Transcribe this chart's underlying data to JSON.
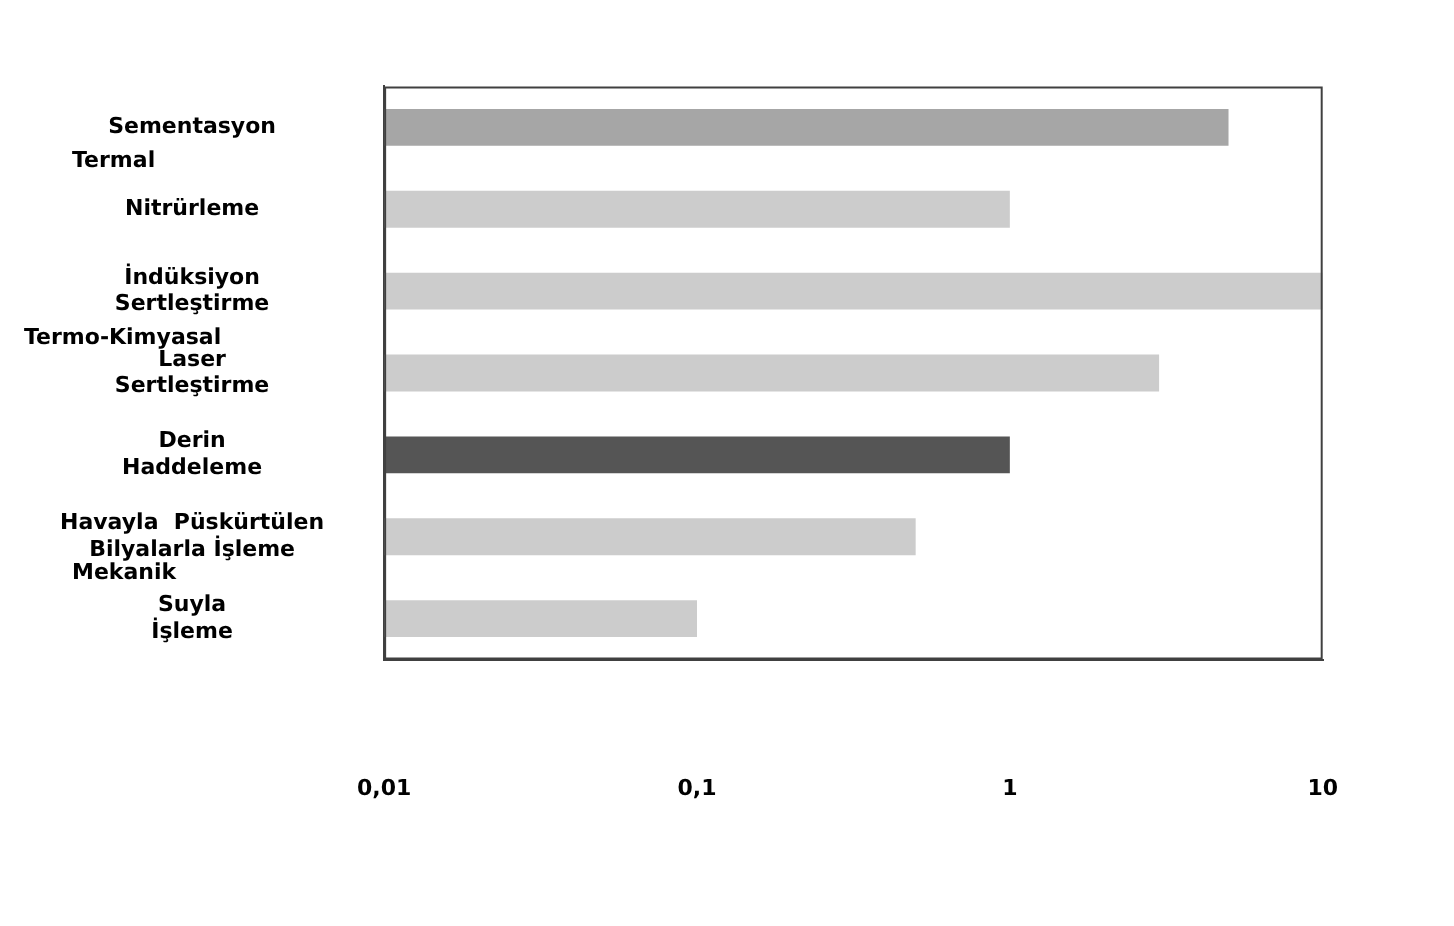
{
  "chart_data": {
    "type": "bar",
    "orientation": "horizontal",
    "log": "x",
    "categories": [
      "Sementasyon",
      "Nitrürleme",
      "İndüksiyon\nSertleştirme",
      "Laser\nSertleştirme",
      "Derin\nHaddeleme",
      "Havayla  Püskürtülen\nBilyalarla İşleme",
      "Suyla\nİşleme"
    ],
    "values": [
      5,
      1,
      10,
      3,
      1,
      0.5,
      0.1
    ],
    "colors": [
      "#a6a6a6",
      "#cccccc",
      "#cccccc",
      "#cccccc",
      "#555555",
      "#cccccc",
      "#cccccc"
    ],
    "xlim": [
      0.01,
      10
    ],
    "xticks": [
      {
        "value": 0.01,
        "label": "0,01"
      },
      {
        "value": 0.1,
        "label": "0,1"
      },
      1,
      10
    ],
    "grid": false,
    "legend": false,
    "annotations": [
      "Termal",
      "Termo-Kimyasal",
      "Mekanik"
    ]
  }
}
